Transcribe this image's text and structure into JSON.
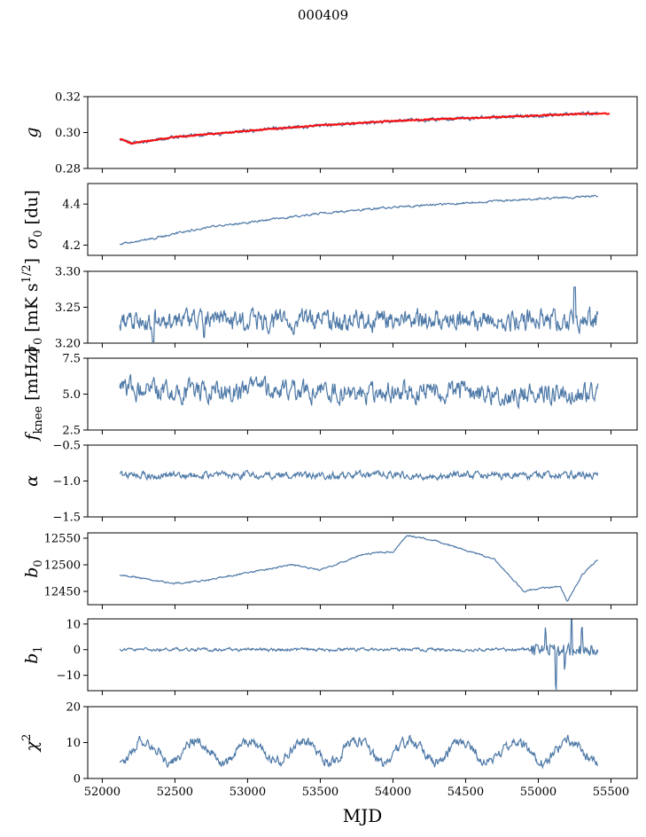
{
  "figure": {
    "title": "000409",
    "xlabel": "MJD",
    "series_color": "#4e79a7",
    "fit_color": "#ff0000"
  },
  "chart_data": {
    "type": "line",
    "title": "000409",
    "xlabel": "MJD",
    "xlim": [
      51900,
      55680
    ],
    "xticks": [
      52000,
      52500,
      53000,
      53500,
      54000,
      54500,
      55000,
      55500
    ],
    "xtick_labels": [
      "52000",
      "52500",
      "53000",
      "53500",
      "54000",
      "54500",
      "55000",
      "55500"
    ],
    "data_start_mjd": 52120,
    "data_end_mjd": 55410,
    "panels": [
      {
        "id": "g",
        "ylabel_html": "<tspan font-style=\"italic\">g</tspan>",
        "ylim": [
          0.28,
          0.32
        ],
        "yticks": [
          0.28,
          0.3,
          0.32
        ],
        "ytick_labels": [
          "0.28",
          "0.30",
          "0.32"
        ],
        "trend": {
          "x": [
            52120,
            52200,
            52500,
            53000,
            53500,
            54000,
            54500,
            55000,
            55300,
            55410
          ],
          "y": [
            0.2965,
            0.294,
            0.2975,
            0.301,
            0.304,
            0.3065,
            0.308,
            0.3095,
            0.3105,
            0.3105
          ]
        },
        "noise": 0.0008,
        "fit": {
          "name": "fit",
          "x_end": 55490,
          "x": [
            52120,
            52200,
            52500,
            53000,
            53500,
            54000,
            54500,
            55000,
            55300,
            55490
          ],
          "y": [
            0.2965,
            0.294,
            0.2975,
            0.301,
            0.304,
            0.3065,
            0.308,
            0.3095,
            0.3105,
            0.3105
          ]
        }
      },
      {
        "id": "sigma0",
        "ylabel_html": "<tspan font-style=\"italic\">σ</tspan><tspan dy=\"5\" font-size=\"13\">0</tspan><tspan dy=\"-5\"> [du]</tspan>",
        "ylim": [
          4.15,
          4.5
        ],
        "yticks": [
          4.2,
          4.4
        ],
        "ytick_labels": [
          "4.2",
          "4.4"
        ],
        "trend": {
          "x": [
            52120,
            52300,
            52700,
            53000,
            53500,
            54000,
            54500,
            55000,
            55410
          ],
          "y": [
            4.205,
            4.225,
            4.285,
            4.31,
            4.355,
            4.385,
            4.405,
            4.425,
            4.44
          ]
        },
        "noise": 0.004
      },
      {
        "id": "sigma_white",
        "ylabel_html": "<tspan font-style=\"italic\">σ</tspan><tspan dy=\"5\" font-size=\"13\">0</tspan><tspan dy=\"-5\"> [mK s</tspan><tspan dy=\"-8\" font-size=\"13\">1/2</tspan><tspan dy=\"8\">]</tspan>",
        "ylim": [
          3.2,
          3.3
        ],
        "yticks": [
          3.2,
          3.25,
          3.3
        ],
        "ytick_labels": [
          "3.20",
          "3.25",
          "3.30"
        ],
        "trend": {
          "x": [
            52120,
            55410
          ],
          "y": [
            3.232,
            3.232
          ]
        },
        "noise": 0.012,
        "dips": [
          [
            52350,
            3.202
          ],
          [
            52700,
            3.208
          ],
          [
            55250,
            3.278
          ]
        ]
      },
      {
        "id": "fknee",
        "ylabel_html": "<tspan font-style=\"italic\">f</tspan><tspan dy=\"5\" font-size=\"13\">knee</tspan><tspan dy=\"-5\"> [mHz]</tspan>",
        "ylim": [
          2.5,
          7.5
        ],
        "yticks": [
          2.5,
          5.0,
          7.5
        ],
        "ytick_labels": [
          "2.5",
          "5.0",
          "7.5"
        ],
        "trend": {
          "x": [
            52120,
            55410
          ],
          "y": [
            5.3,
            5.0
          ]
        },
        "noise": 0.6
      },
      {
        "id": "alpha",
        "ylabel_html": "<tspan font-style=\"italic\">α</tspan>",
        "ylim": [
          -1.5,
          -0.5
        ],
        "yticks": [
          -1.5,
          -1.0,
          -0.5
        ],
        "ytick_labels": [
          "−1.5",
          "−1.0",
          "−0.5"
        ],
        "trend": {
          "x": [
            52120,
            55410
          ],
          "y": [
            -0.92,
            -0.92
          ]
        },
        "noise": 0.04
      },
      {
        "id": "b0",
        "ylabel_html": "<tspan font-style=\"italic\">b</tspan><tspan dy=\"5\" font-size=\"13\">0</tspan>",
        "ylim": [
          12425,
          12560
        ],
        "yticks": [
          12450,
          12500,
          12550
        ],
        "ytick_labels": [
          "12450",
          "12500",
          "12550"
        ],
        "trend": {
          "x": [
            52120,
            52200,
            52500,
            52700,
            53000,
            53300,
            53500,
            53800,
            54000,
            54100,
            54300,
            54700,
            54900,
            55000,
            55150,
            55200,
            55300,
            55400
          ],
          "y": [
            12480,
            12478,
            12465,
            12470,
            12485,
            12500,
            12490,
            12520,
            12525,
            12555,
            12545,
            12510,
            12450,
            12455,
            12460,
            12430,
            12480,
            12508
          ]
        },
        "noise": 1.2
      },
      {
        "id": "b1",
        "ylabel_html": "<tspan font-style=\"italic\">b</tspan><tspan dy=\"5\" font-size=\"13\">1</tspan>",
        "ylim": [
          -16,
          12
        ],
        "yticks": [
          -10,
          0,
          10
        ],
        "ytick_labels": [
          "−10",
          "0",
          "10"
        ],
        "trend": {
          "x": [
            52120,
            55410
          ],
          "y": [
            0,
            0
          ]
        },
        "noise": 0.5,
        "spikes": [
          [
            55050,
            7
          ],
          [
            55120,
            -14
          ],
          [
            55230,
            11
          ],
          [
            55300,
            9
          ],
          [
            55180,
            -8
          ]
        ]
      },
      {
        "id": "chi2",
        "ylabel_html": "<tspan font-style=\"italic\">χ</tspan><tspan dy=\"-8\" font-size=\"13\">2</tspan>",
        "ylim": [
          0,
          20
        ],
        "yticks": [
          0,
          10,
          20
        ],
        "ytick_labels": [
          "0",
          "10",
          "20"
        ],
        "trend": {
          "x": [
            52120,
            55410
          ],
          "y": [
            7.5,
            7.5
          ]
        },
        "noise": 1.2,
        "period": 365
      }
    ]
  }
}
